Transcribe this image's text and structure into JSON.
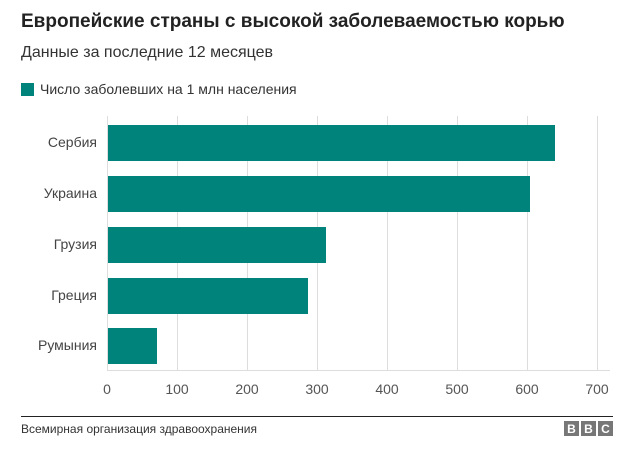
{
  "header": {
    "title": "Европейские страны с высокой заболеваемостью корью",
    "subtitle": "Данные за последние 12 месяцев"
  },
  "legend": {
    "label": "Число заболевших на 1 млн населения",
    "color": "#00837b"
  },
  "axis": {
    "ticks": [
      "0",
      "100",
      "200",
      "300",
      "400",
      "500",
      "600",
      "700"
    ]
  },
  "footer": {
    "source": "Всемирная организация здравоохранения",
    "logo": [
      "B",
      "B",
      "C"
    ]
  },
  "chart_data": {
    "type": "bar",
    "orientation": "horizontal",
    "title": "Европейские страны с высокой заболеваемостью корью",
    "subtitle": "Данные за последние 12 месяцев",
    "categories": [
      "Сербия",
      "Украина",
      "Грузия",
      "Греция",
      "Румыния"
    ],
    "series": [
      {
        "name": "Число заболевших на 1 млн населения",
        "values": [
          639,
          603,
          311,
          286,
          70
        ],
        "color": "#00837b"
      }
    ],
    "xlabel": "",
    "ylabel": "",
    "xlim": [
      0,
      700
    ],
    "xticks": [
      0,
      100,
      200,
      300,
      400,
      500,
      600,
      700
    ],
    "grid": true,
    "legend_position": "top-left",
    "source": "Всемирная организация здравоохранения"
  }
}
